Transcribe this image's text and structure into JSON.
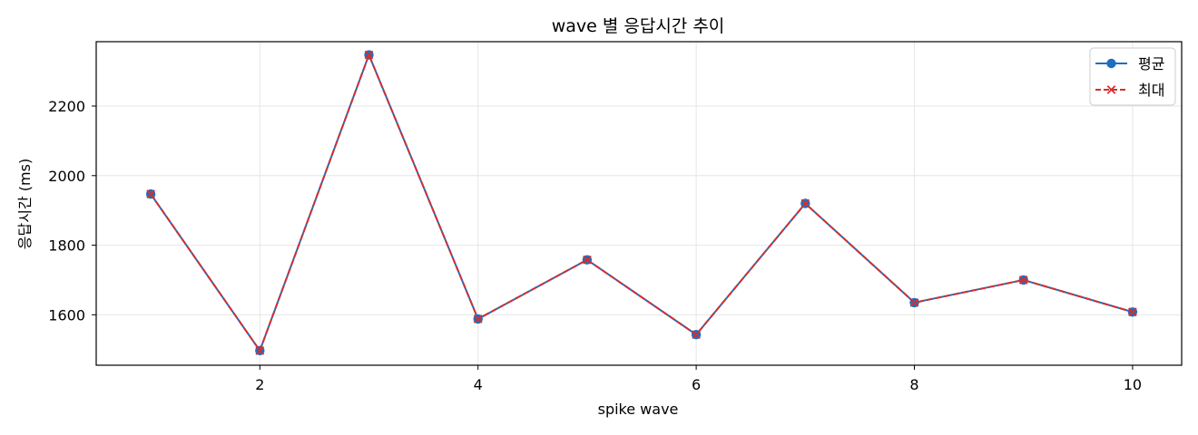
{
  "chart_data": {
    "type": "line",
    "title": "wave 별 응답시간 추이",
    "xlabel": "spike wave",
    "ylabel": "응답시간 (ms)",
    "x": [
      1,
      2,
      3,
      4,
      5,
      6,
      7,
      8,
      9,
      10
    ],
    "xlim": [
      0.5,
      10.45
    ],
    "ylim": [
      1455,
      2385
    ],
    "xticks": [
      2,
      4,
      6,
      8,
      10
    ],
    "yticks": [
      1600,
      1800,
      2000,
      2200
    ],
    "grid": true,
    "legend_position": "top-right",
    "series": [
      {
        "name": "평균",
        "values": [
          1947,
          1497,
          2347,
          1588,
          1758,
          1543,
          1920,
          1635,
          1700,
          1608
        ],
        "color": "#1f6fbf",
        "marker": "circle",
        "line_style": "solid"
      },
      {
        "name": "최대",
        "values": [
          1947,
          1497,
          2347,
          1588,
          1758,
          1543,
          1920,
          1635,
          1700,
          1608
        ],
        "color": "#d32f2f",
        "marker": "x",
        "line_style": "dashed"
      }
    ]
  }
}
